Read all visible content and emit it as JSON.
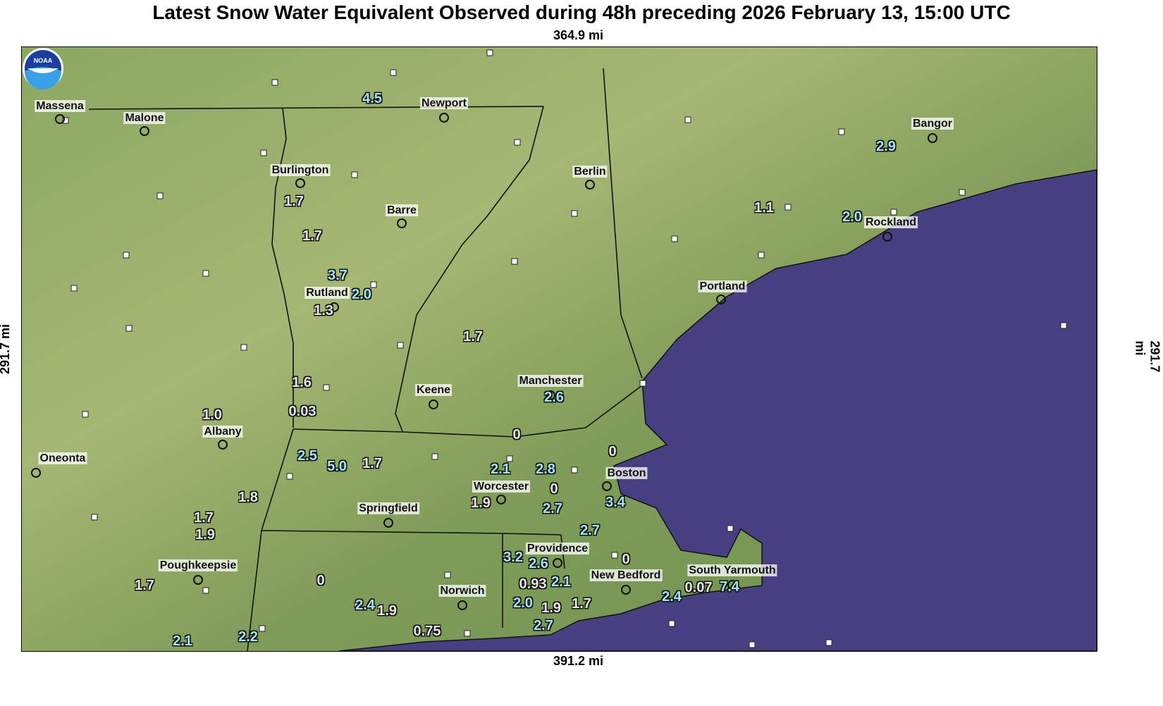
{
  "title": "Latest Snow Water Equivalent Observed during 48h preceding 2026 February 13, 15:00 UTC",
  "scales": {
    "top": "364.9 mi",
    "bottom": "391.2 mi",
    "left": "291.7 mi",
    "right": "291.7 mi"
  },
  "colors": {
    "land": "#7a9a55",
    "ocean": "#463f80",
    "value_high": "#9fe4f5",
    "value_low": "#e6e6e6"
  },
  "logo": "NOAA",
  "cities": [
    "Massena",
    "Malone",
    "Newport",
    "Burlington",
    "Berlin",
    "Bangor",
    "Barre",
    "Rockland",
    "Portland",
    "Rutland",
    "Keene",
    "Manchester",
    "Albany",
    "Oneonta",
    "Boston",
    "Worcester",
    "Springfield",
    "Providence",
    "Poughkeepsie",
    "New Bedford",
    "South Yarmouth",
    "Norwich"
  ],
  "observations": [
    "4.5",
    "2.9",
    "1.7",
    "1.1",
    "2.0",
    "1.7",
    "3.7",
    "2.0",
    "1.3",
    "1.7",
    "1.6",
    "2.6",
    "0.03",
    "1.0",
    "0",
    "0",
    "2.5",
    "5.0",
    "1.7",
    "2.1",
    "2.8",
    "0",
    "1.8",
    "1.9",
    "2.7",
    "3.4",
    "1.7",
    "1.9",
    "2.7",
    "3.2",
    "2.6",
    "0",
    "0.93",
    "2.1",
    "0.07",
    "7.4",
    "1.7",
    "0",
    "2.0",
    "2.4",
    "2.4",
    "1.9",
    "1.9",
    "1.7",
    "2.7",
    "0.75",
    "2.2",
    "2.1"
  ]
}
